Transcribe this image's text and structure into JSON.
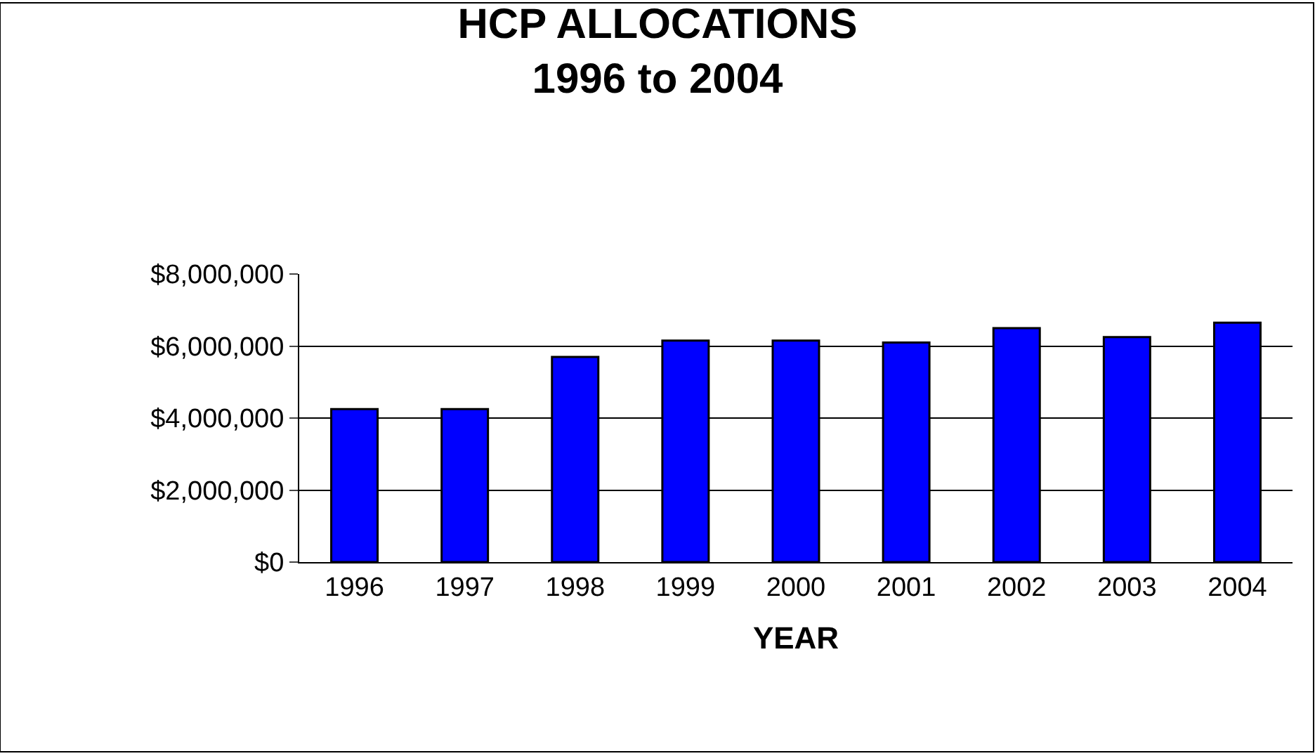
{
  "chart_data": {
    "type": "bar",
    "title": "HCP ALLOCATIONS\n1996 to 2004",
    "xlabel": "YEAR",
    "categories": [
      "1996",
      "1997",
      "1998",
      "1999",
      "2000",
      "2001",
      "2002",
      "2003",
      "2004"
    ],
    "values": [
      4250000,
      4250000,
      5700000,
      6150000,
      6150000,
      6100000,
      6500000,
      6250000,
      6650000
    ],
    "color": "#0000ff",
    "ylim": [
      0,
      8000000
    ],
    "yticks": [
      {
        "value": 0,
        "label": "$0"
      },
      {
        "value": 2000000,
        "label": "$2,000,000"
      },
      {
        "value": 4000000,
        "label": "$4,000,000"
      },
      {
        "value": 6000000,
        "label": "$6,000,000"
      },
      {
        "value": 8000000,
        "label": "$8,000,000"
      }
    ],
    "grid": "y",
    "legend": false
  }
}
